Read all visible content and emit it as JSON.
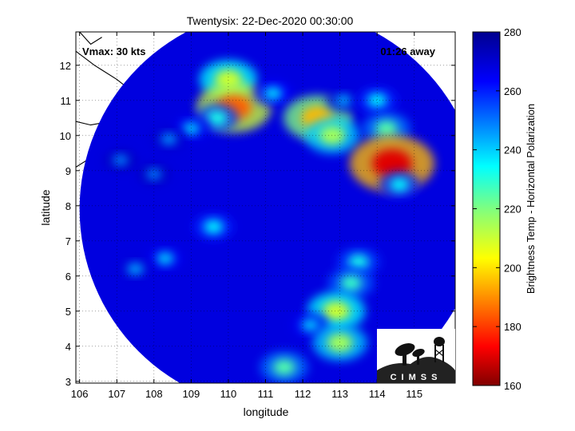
{
  "chart_data": {
    "type": "heatmap",
    "title": "Twentysix: 22-Dec-2020 00:30:00",
    "xlabel": "longitude",
    "ylabel": "latitude",
    "xlim": [
      105.9,
      116.1
    ],
    "ylim": [
      2.95,
      12.95
    ],
    "x_ticks": [
      106,
      107,
      108,
      109,
      110,
      111,
      112,
      113,
      114,
      115
    ],
    "y_ticks": [
      3,
      4,
      5,
      6,
      7,
      8,
      9,
      10,
      11,
      12
    ],
    "grid": true,
    "annotations": {
      "vmax": "Vmax: 30 kts",
      "away": "01:26 away"
    },
    "colorbar": {
      "label": "Brightness Temp - Horizontal Polarization",
      "min": 160,
      "max": 280,
      "ticks": [
        160,
        180,
        200,
        220,
        240,
        260,
        280
      ]
    },
    "swath": {
      "center": [
        111.4,
        7.9
      ],
      "radius_deg": 5.4,
      "background_value": 268
    },
    "features": [
      {
        "lon": 110.0,
        "lat": 11.6,
        "value": 210
      },
      {
        "lon": 110.15,
        "lat": 10.8,
        "value": 185
      },
      {
        "lon": 109.7,
        "lat": 10.5,
        "value": 232
      },
      {
        "lon": 109.0,
        "lat": 10.2,
        "value": 240
      },
      {
        "lon": 108.4,
        "lat": 9.9,
        "value": 246
      },
      {
        "lon": 111.2,
        "lat": 11.2,
        "value": 238
      },
      {
        "lon": 112.4,
        "lat": 10.5,
        "value": 195
      },
      {
        "lon": 112.8,
        "lat": 10.0,
        "value": 215
      },
      {
        "lon": 113.1,
        "lat": 11.0,
        "value": 244
      },
      {
        "lon": 114.0,
        "lat": 11.0,
        "value": 235
      },
      {
        "lon": 114.25,
        "lat": 10.2,
        "value": 225
      },
      {
        "lon": 114.4,
        "lat": 9.2,
        "value": 170
      },
      {
        "lon": 114.6,
        "lat": 8.6,
        "value": 235
      },
      {
        "lon": 107.1,
        "lat": 9.3,
        "value": 248
      },
      {
        "lon": 108.0,
        "lat": 8.9,
        "value": 248
      },
      {
        "lon": 109.6,
        "lat": 7.4,
        "value": 235
      },
      {
        "lon": 108.3,
        "lat": 6.5,
        "value": 240
      },
      {
        "lon": 107.5,
        "lat": 6.2,
        "value": 244
      },
      {
        "lon": 113.5,
        "lat": 6.4,
        "value": 232
      },
      {
        "lon": 113.3,
        "lat": 5.8,
        "value": 228
      },
      {
        "lon": 112.9,
        "lat": 5.0,
        "value": 210
      },
      {
        "lon": 112.2,
        "lat": 4.6,
        "value": 240
      },
      {
        "lon": 113.0,
        "lat": 4.1,
        "value": 215
      },
      {
        "lon": 111.5,
        "lat": 3.4,
        "value": 225
      }
    ]
  },
  "logo": {
    "text": "CIMSS"
  }
}
